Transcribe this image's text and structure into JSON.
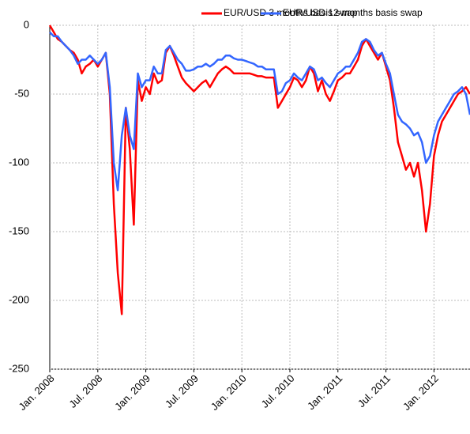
{
  "chart_data": {
    "type": "line",
    "categories": [
      "Jan. 2008",
      null,
      null,
      null,
      null,
      null,
      null,
      null,
      null,
      null,
      null,
      null,
      "Jul. 2008",
      null,
      null,
      null,
      null,
      null,
      null,
      null,
      null,
      null,
      null,
      null,
      "Jan. 2009",
      null,
      null,
      null,
      null,
      null,
      null,
      null,
      null,
      null,
      null,
      null,
      "Jul. 2009",
      null,
      null,
      null,
      null,
      null,
      null,
      null,
      null,
      null,
      null,
      null,
      "Jan. 2010",
      null,
      null,
      null,
      null,
      null,
      null,
      null,
      null,
      null,
      null,
      null,
      "Jul. 2010",
      null,
      null,
      null,
      null,
      null,
      null,
      null,
      null,
      null,
      null,
      null,
      "Jan. 2011",
      null,
      null,
      null,
      null,
      null,
      null,
      null,
      null,
      null,
      null,
      null,
      "Jul. 2011",
      null,
      null,
      null,
      null,
      null,
      null,
      null,
      null,
      null,
      null,
      null,
      "Jan. 2012",
      null,
      null,
      null,
      null,
      null,
      null,
      null,
      null,
      null
    ],
    "series": [
      {
        "name": "EUR/USD 3 months basis swap",
        "color": "#ff0000",
        "values": [
          0,
          -5,
          -10,
          -12,
          -15,
          -18,
          -20,
          -25,
          -35,
          -30,
          -28,
          -25,
          -30,
          -25,
          -20,
          -50,
          -130,
          -180,
          -210,
          -60,
          -90,
          -145,
          -40,
          -55,
          -45,
          -50,
          -35,
          -42,
          -40,
          -20,
          -15,
          -22,
          -30,
          -38,
          -42,
          -45,
          -48,
          -45,
          -42,
          -40,
          -45,
          -40,
          -35,
          -32,
          -30,
          -32,
          -35,
          -35,
          -35,
          -35,
          -35,
          -36,
          -37,
          -37,
          -38,
          -38,
          -38,
          -60,
          -55,
          -50,
          -45,
          -38,
          -40,
          -45,
          -40,
          -30,
          -35,
          -48,
          -40,
          -50,
          -55,
          -48,
          -40,
          -38,
          -35,
          -35,
          -30,
          -25,
          -15,
          -10,
          -15,
          -20,
          -25,
          -20,
          -30,
          -40,
          -60,
          -85,
          -95,
          -105,
          -100,
          -110,
          -100,
          -120,
          -150,
          -130,
          -95,
          -80,
          -70,
          -65,
          -60,
          -55,
          -50,
          -48,
          -45,
          -50
        ]
      },
      {
        "name": "EUR/USD 12-months basis swap",
        "color": "#3366ff",
        "values": [
          -5,
          -8,
          -8,
          -12,
          -15,
          -18,
          -22,
          -28,
          -25,
          -25,
          -22,
          -25,
          -28,
          -25,
          -20,
          -45,
          -100,
          -120,
          -80,
          -60,
          -80,
          -90,
          -35,
          -45,
          -40,
          -40,
          -30,
          -35,
          -35,
          -18,
          -15,
          -20,
          -25,
          -28,
          -33,
          -33,
          -32,
          -30,
          -30,
          -28,
          -30,
          -28,
          -25,
          -25,
          -22,
          -22,
          -24,
          -25,
          -25,
          -26,
          -27,
          -28,
          -30,
          -30,
          -32,
          -32,
          -32,
          -50,
          -48,
          -42,
          -40,
          -35,
          -38,
          -40,
          -35,
          -30,
          -32,
          -40,
          -38,
          -42,
          -45,
          -40,
          -35,
          -33,
          -30,
          -30,
          -25,
          -20,
          -12,
          -10,
          -12,
          -18,
          -22,
          -20,
          -28,
          -35,
          -50,
          -65,
          -70,
          -72,
          -75,
          -80,
          -78,
          -85,
          -100,
          -95,
          -80,
          -70,
          -65,
          -60,
          -55,
          -50,
          -48,
          -45,
          -50,
          -65
        ]
      }
    ],
    "ylim": [
      -250,
      0
    ],
    "yticks": [
      0,
      -50,
      -100,
      -150,
      -200,
      -250
    ],
    "grid": true
  }
}
